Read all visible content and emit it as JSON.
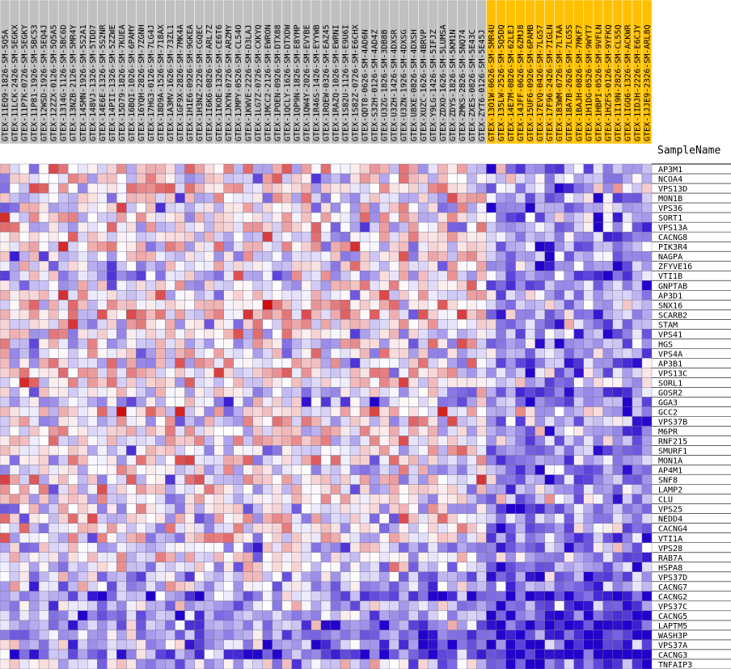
{
  "chart_data": {
    "type": "heatmap",
    "row_axis_title": "SampleName",
    "group_colors": {
      "group1": "#c0c0c0",
      "group2": "#ffc000"
    },
    "color_scale": {
      "low": "#2200cc",
      "mid": "#ffffff",
      "high": "#cc0000"
    },
    "columns": [
      {
        "name": "GTEX-11EQ9-1826-SM-5Q5A",
        "group": "group1"
      },
      {
        "name": "GTEX-11LCK-2426-SM-5EGKX",
        "group": "group1"
      },
      {
        "name": "GTEX-11P7K-0726-SM-5EGKY",
        "group": "group1"
      },
      {
        "name": "GTEX-11P81-1926-SM-5BC53",
        "group": "group1"
      },
      {
        "name": "GTEX-12WSD-1926-SM-5EQ4J",
        "group": "group1"
      },
      {
        "name": "GTEX-12ZZX-0126-SM-5Q5A5",
        "group": "group1"
      },
      {
        "name": "GTEX-1314G-1126-SM-5BC6D",
        "group": "group1"
      },
      {
        "name": "GTEX-13NZB-2126-SM-5MR4Y",
        "group": "group1"
      },
      {
        "name": "GTEX-145MN-1926-SM-5S2A1",
        "group": "group1"
      },
      {
        "name": "GTEX-148VJ-1326-SM-5TDD7",
        "group": "group1"
      },
      {
        "name": "GTEX-14E6E-1326-SM-5S2NR",
        "group": "group1"
      },
      {
        "name": "GTEX-14PII-1326-SM-5ZZWE",
        "group": "group1"
      },
      {
        "name": "GTEX-15D79-1826-SM-7KUEA",
        "group": "group1"
      },
      {
        "name": "GTEX-16BQI-1026-SM-6PAMY",
        "group": "group1"
      },
      {
        "name": "GTEX-16YQH-2826-SM-7ZGNH",
        "group": "group1"
      },
      {
        "name": "GTEX-17HG3-0126-SM-7LG4J",
        "group": "group1"
      },
      {
        "name": "GTEX-18D9A-1526-SM-718AX",
        "group": "group1"
      },
      {
        "name": "GTEX-1A3MV-1626-SM-73ZL1",
        "group": "group1"
      },
      {
        "name": "GTEX-1GF9X-2826-SM-7MK4A",
        "group": "group1"
      },
      {
        "name": "GTEX-1H1E6-0926-SM-9GKEA",
        "group": "group1"
      },
      {
        "name": "GTEX-1H3NZ-2226-SM-CGQEC",
        "group": "group1"
      },
      {
        "name": "GTEX-1I6K6-0826-SM-ARL7Z",
        "group": "group1"
      },
      {
        "name": "GTEX-1IKOE-1326-SM-CE6T6",
        "group": "group1"
      },
      {
        "name": "GTEX-1JKYN-0726-SM-ARZMY",
        "group": "group1"
      },
      {
        "name": "GTEX-1JMPY-0526-SM-CL54O",
        "group": "group1"
      },
      {
        "name": "GTEX-1KWVE-2226-SM-D3LAJ",
        "group": "group1"
      },
      {
        "name": "GTEX-1LG7Z-0726-SM-CXKYQ",
        "group": "group1"
      },
      {
        "name": "GTEX-1MCC2-2126-SM-EWRON",
        "group": "group1"
      },
      {
        "name": "GTEX-1POEN-0926-SM-DTX88",
        "group": "group1"
      },
      {
        "name": "GTEX-1QCLY-1626-SM-DTXDW",
        "group": "group1"
      },
      {
        "name": "GTEX-1QP9N-1826-SM-E8YMP",
        "group": "group1"
      },
      {
        "name": "GTEX-1QW4Y-2026-SM-EVYBE",
        "group": "group1"
      },
      {
        "name": "GTEX-1R46S-1426-SM-EYYWB",
        "group": "group1"
      },
      {
        "name": "GTEX-1RQEW-0326-SM-EAZ45",
        "group": "group1"
      },
      {
        "name": "GTEX-1RAZQ-1026-SM-EWRNI",
        "group": "group1"
      },
      {
        "name": "GTEX-1S82U-1126-SM-E9U6I",
        "group": "group1"
      },
      {
        "name": "GTEX-1S82Z-0726-SM-E6CHX",
        "group": "group1"
      },
      {
        "name": "GTEX-QDT8-0626-SM-4AD6N",
        "group": "group1"
      },
      {
        "name": "GTEX-S32H-0126-SM-4AD4Z",
        "group": "group1"
      },
      {
        "name": "GTEX-U3ZG-1826-SM-3DB8B",
        "group": "group1"
      },
      {
        "name": "GTEX-U3ZH-1426-SM-4DXSR",
        "group": "group1"
      },
      {
        "name": "GTEX-U3ZN-1926-SM-4DXSG",
        "group": "group1"
      },
      {
        "name": "GTEX-U8XE-0826-SM-4DXSH",
        "group": "group1"
      },
      {
        "name": "GTEX-XUZC-1626-SM-4BRVP",
        "group": "group1"
      },
      {
        "name": "GTEX-Y9LG-1426-SM-5IFJZ",
        "group": "group1"
      },
      {
        "name": "GTEX-ZDXO-1626-SM-5LUMSA",
        "group": "group1"
      },
      {
        "name": "GTEX-ZDYS-1826-SM-5KM1N",
        "group": "group1"
      },
      {
        "name": "GTEX-ZMKS-2826-SM-5NQ74",
        "group": "group1"
      },
      {
        "name": "GTEX-ZXES-0826-SM-5E43C",
        "group": "group1"
      },
      {
        "name": "GTEX-ZYT6-0126-SM-5E45J",
        "group": "group1"
      },
      {
        "name": "GTEX-13O1W-0626-SM-5MR4U",
        "group": "group2"
      },
      {
        "name": "GTEX-135LW-2526-SM-5Q5DQ",
        "group": "group2"
      },
      {
        "name": "GTEX-14E7M-0826-SM-62LEJ",
        "group": "group2"
      },
      {
        "name": "GTEX-14JFF-0626-SM-6ZMJ8",
        "group": "group2"
      },
      {
        "name": "GTEX-15UF6-0926-SM-6PAMB",
        "group": "group2"
      },
      {
        "name": "GTEX-17EVQ-0426-SM-7LG57",
        "group": "group2"
      },
      {
        "name": "GTEX-17F96-2426-SM-7IGLN",
        "group": "group2"
      },
      {
        "name": "GTEX-183WM-0726-SM-7LTAA",
        "group": "group2"
      },
      {
        "name": "GTEX-18A7B-2626-SM-7LG5S",
        "group": "group2"
      },
      {
        "name": "GTEX-1BAJH-0826-SM-7MKF7",
        "group": "group2"
      },
      {
        "name": "GTEX-1H1DG-0526-SM-9WYT7",
        "group": "group2"
      },
      {
        "name": "GTEX-1HBPI-0526-SM-9VFLN",
        "group": "group2"
      },
      {
        "name": "GTEX-1HZFS-0126-SM-9YFKQ",
        "group": "group2"
      },
      {
        "name": "GTEX-1I19N-2826-SM-CL55Q",
        "group": "group2"
      },
      {
        "name": "GTEX-1IGQ6-1326-SM-ACKWR",
        "group": "group2"
      },
      {
        "name": "GTEX-1IDJH-2226-SM-E6CJY",
        "group": "group2"
      },
      {
        "name": "GTEX-1JJE9-2326-SM-ARL8Q",
        "group": "group2"
      }
    ],
    "rows": [
      "AP3M1",
      "NCOA4",
      "VPS13D",
      "MON1B",
      "VPS36",
      "SORT1",
      "VPS13A",
      "CACNG8",
      "PIK3R4",
      "NAGPA",
      "ZFYVE16",
      "VTI1B",
      "GNPTAB",
      "AP3D1",
      "SNX16",
      "SCARB2",
      "STAM",
      "VPS41",
      "HGS",
      "VPS4A",
      "AP3B1",
      "VPS13C",
      "SORL1",
      "GOSR2",
      "GGA3",
      "GCC2",
      "VPS37B",
      "M6PR",
      "RNF215",
      "SMURF1",
      "MON1A",
      "AP4M1",
      "SNF8",
      "LAMP2",
      "CLU",
      "VPS25",
      "NEDD4",
      "CACNG4",
      "VTI1A",
      "VPS28",
      "RAB7A",
      "HSPA8",
      "VPS37D",
      "CACNG7",
      "CACNG2",
      "VPS37C",
      "CACNG5",
      "LAPTM5",
      "WASH3P",
      "VPS37A",
      "CACNG3",
      "TNFAIP3"
    ],
    "value_range": [
      -3,
      3
    ]
  }
}
